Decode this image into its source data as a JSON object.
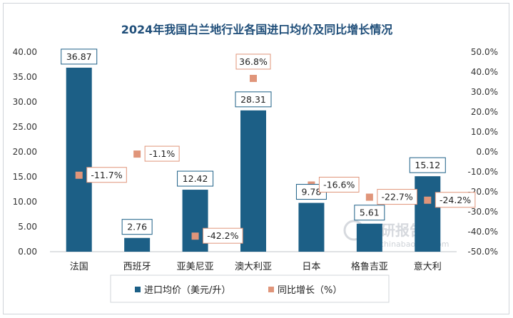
{
  "chart_data": {
    "type": "bar+scatter",
    "title": "2024年我国白兰地行业各国进口均价及同比增长情况",
    "categories": [
      "法国",
      "西班牙",
      "亚美尼亚",
      "澳大利亚",
      "日本",
      "格鲁吉亚",
      "意大利"
    ],
    "series": [
      {
        "name": "进口均价（美元/升）",
        "type": "bar",
        "axis": "left",
        "values": [
          36.87,
          2.76,
          12.42,
          28.31,
          9.78,
          5.61,
          15.12
        ],
        "labels": [
          "36.87",
          "2.76",
          "12.42",
          "28.31",
          "9.78",
          "5.61",
          "15.12"
        ],
        "color": "#1c5f86"
      },
      {
        "name": "同比增长（%）",
        "type": "scatter",
        "axis": "right",
        "values": [
          -11.7,
          -1.1,
          -42.2,
          36.8,
          -16.6,
          -22.7,
          -24.2
        ],
        "labels": [
          "-11.7%",
          "-1.1%",
          "-42.2%",
          "36.8%",
          "-16.6%",
          "-22.7%",
          "-24.2%"
        ],
        "color": "#e0957a"
      }
    ],
    "y_left": {
      "ylim": [
        0,
        40
      ],
      "ticks": [
        "0.00",
        "5.00",
        "10.00",
        "15.00",
        "20.00",
        "25.00",
        "30.00",
        "35.00",
        "40.00"
      ]
    },
    "y_right": {
      "ylim": [
        -50,
        50
      ],
      "ticks": [
        "-50.0%",
        "-40.0%",
        "-30.0%",
        "-20.0%",
        "-10.0%",
        "0.0%",
        "10.0%",
        "20.0%",
        "30.0%",
        "40.0%",
        "50.0%"
      ]
    },
    "legend": {
      "position": "bottom",
      "items": [
        "进口均价（美元/升）",
        "同比增长（%）"
      ]
    },
    "grid": false
  },
  "watermark": {
    "brand": "观研报告网",
    "url": "chinabaogao.com"
  }
}
